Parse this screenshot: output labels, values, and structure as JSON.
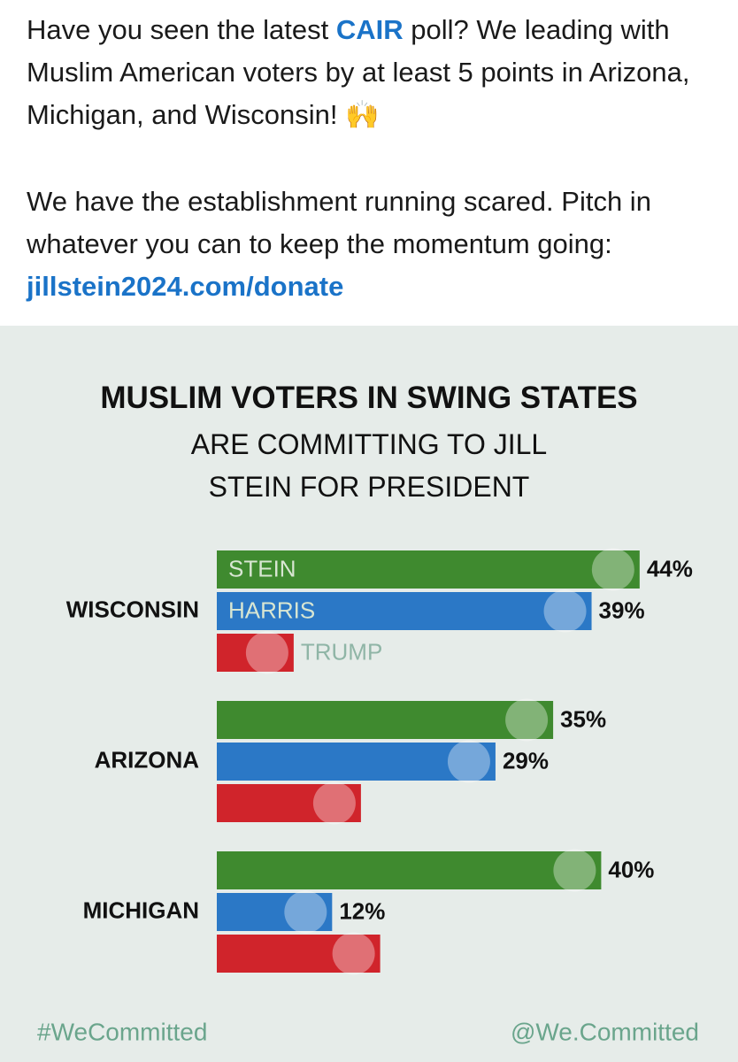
{
  "post": {
    "paragraph_1": {
      "before": "Have you seen the latest ",
      "link": "CAIR",
      "after": " poll? We leading with Muslim American voters by at least 5 points in Arizona, Michigan, and Wisconsin! 🙌"
    },
    "paragraph_2": {
      "before": "We have the establishment running scared. Pitch in whatever you can to keep the momentum going: ",
      "link": "jillstein2024.com/donate"
    }
  },
  "chart_data": {
    "type": "bar",
    "orientation": "horizontal",
    "title": "MUSLIM VOTERS IN SWING STATES",
    "subtitle": "ARE COMMITTING TO JILL STEIN FOR PRESIDENT",
    "categories": [
      "WISCONSIN",
      "ARIZONA",
      "MICHIGAN"
    ],
    "series": [
      {
        "name": "STEIN",
        "color": "#3f8a2f",
        "values": [
          44,
          35,
          40
        ],
        "value_labels": [
          "44%",
          "35%",
          "40%"
        ]
      },
      {
        "name": "HARRIS",
        "color": "#2b78c6",
        "values": [
          39,
          29,
          12
        ],
        "value_labels": [
          "39%",
          "29%",
          "12%"
        ]
      },
      {
        "name": "TRUMP",
        "color": "#d0242b",
        "values": [
          8,
          15,
          17
        ],
        "value_labels": [
          null,
          null,
          null
        ]
      }
    ],
    "footer_left": "#WeCommitted",
    "footer_right": "@We.Committed"
  }
}
